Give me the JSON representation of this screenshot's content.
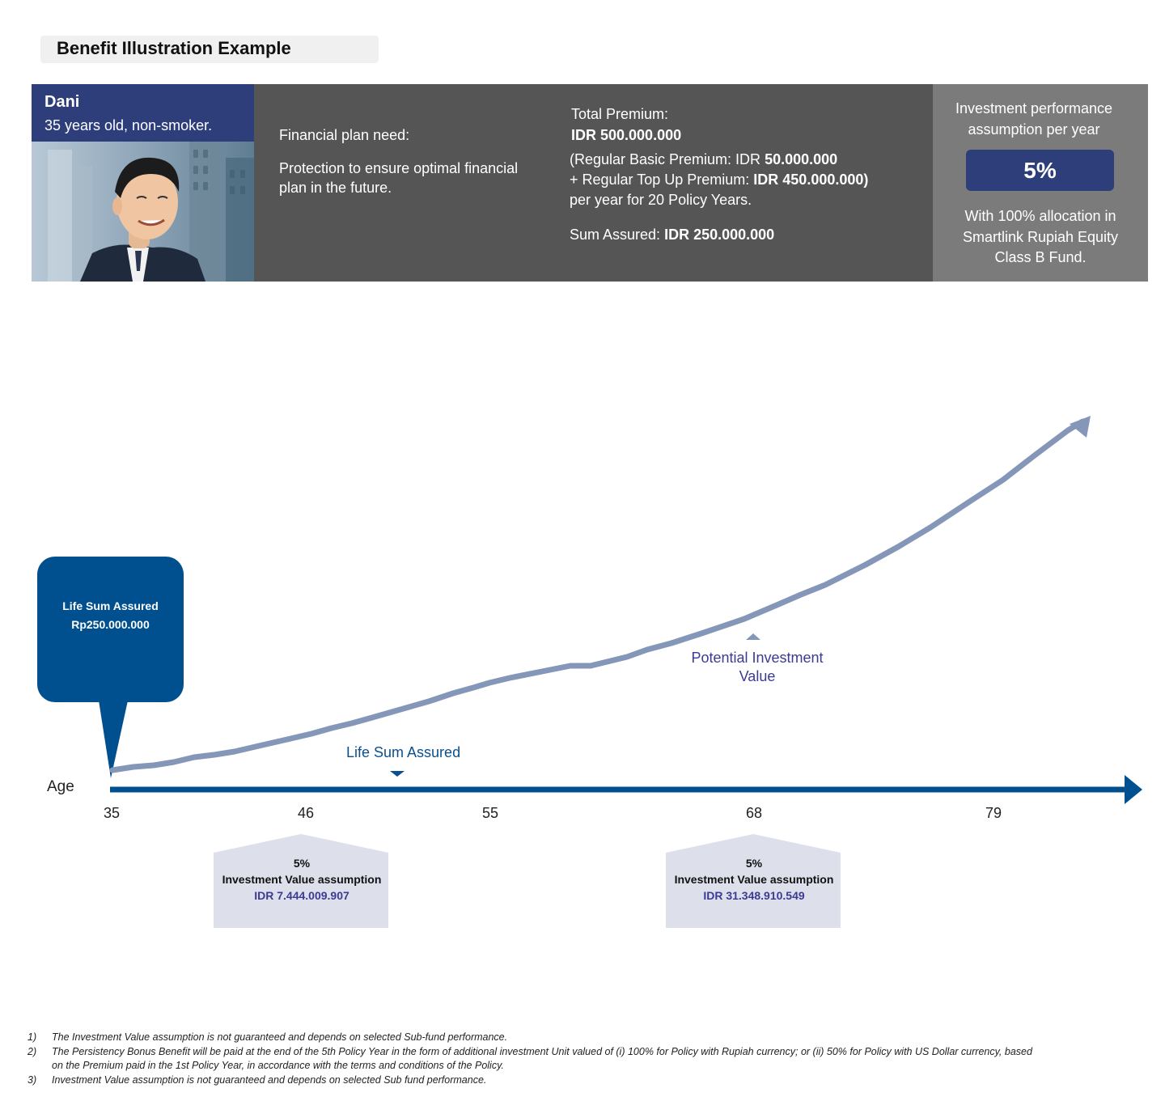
{
  "title": "Benefit Illustration Example",
  "person": {
    "name": "Dani",
    "description": "35 years old, non-smoker."
  },
  "plan": {
    "need_label": "Financial plan need:",
    "need_line1": "Protection to ensure optimal financial",
    "need_line2": "plan in the future.",
    "premium_label": "Total Premium:",
    "premium_value": "IDR 500.000.000",
    "basic_prefix": "(Regular Basic Premium: IDR ",
    "basic_value": "50.000.000",
    "topup_prefix": "+ Regular Top Up Premium: ",
    "topup_value": "IDR 450.000.000)",
    "period": "per year for 20 Policy Years.",
    "sum_label": "Sum Assured: ",
    "sum_value": "IDR 250.000.000"
  },
  "performance": {
    "label_line1": "Investment performance",
    "label_line2": "assumption per year",
    "percent": "5%",
    "alloc_line1": "With 100% allocation in",
    "alloc_line2": "Smartlink Rupiah Equity",
    "alloc_line3": "Class B Fund."
  },
  "diagram": {
    "bubble_line1": "Life Sum Assured",
    "bubble_line2": "Rp250.000.000",
    "axis_label": "Age",
    "ages": [
      "35",
      "46",
      "55",
      "68",
      "79"
    ],
    "life_sum_label": "Life Sum Assured",
    "potential_line1": "Potential Investment",
    "potential_line2": "Value",
    "colors": {
      "axis": "#00508f",
      "curve": "#8497b8",
      "assumption_box": "#dde0eb"
    }
  },
  "assumptions": [
    {
      "percent": "5%",
      "label": "Investment Value assumption",
      "value": "IDR 7.444.009.907"
    },
    {
      "percent": "5%",
      "label": "Investment Value assumption",
      "value": "IDR 31.348.910.549"
    }
  ],
  "footnotes": [
    {
      "num": "1)",
      "text": "The Investment Value assumption is not guaranteed and depends on selected Sub-fund performance."
    },
    {
      "num": "2)",
      "text": "The Persistency Bonus Benefit will be paid at the end of the 5th Policy Year in the form of additional investment Unit valued of (i) 100% for Policy with Rupiah currency; or (ii) 50% for Policy with US Dollar currency, based",
      "text2": "on the Premium paid in the 1st Policy Year, in accordance with the terms and conditions of the Policy."
    },
    {
      "num": "3)",
      "text": "Investment Value assumption is not guaranteed and depends on selected Sub fund performance."
    }
  ]
}
